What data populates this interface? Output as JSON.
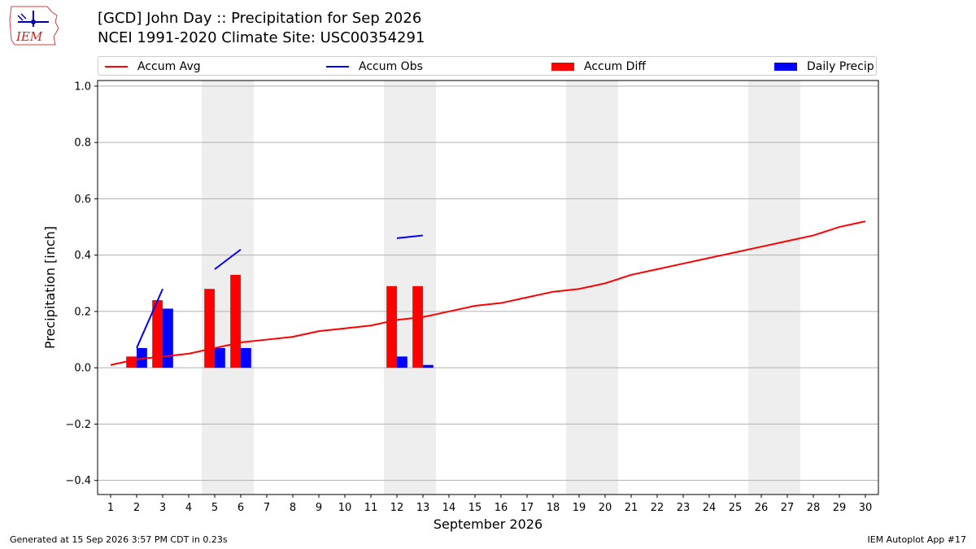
{
  "header": {
    "logo_text": "IEM",
    "title_line1": "[GCD] John Day :: Precipitation for Sep 2026",
    "title_line2": "NCEI 1991-2020 Climate Site: USC00354291"
  },
  "legend": {
    "items": [
      {
        "label": "Accum Avg",
        "kind": "line",
        "color": "#ff0000"
      },
      {
        "label": "Accum Obs",
        "kind": "line",
        "color": "#0000ff"
      },
      {
        "label": "Accum Diff",
        "kind": "box",
        "color": "#ff0000"
      },
      {
        "label": "Daily Precip",
        "kind": "box",
        "color": "#0000ff"
      }
    ],
    "placement": "top, above plot, full width"
  },
  "chart_data": {
    "type": "bar",
    "xlabel": "September 2026",
    "ylabel": "Precipitation [inch]",
    "xlim": [
      0.5,
      30.5
    ],
    "ylim": [
      -0.45,
      1.02
    ],
    "x_ticks": [
      1,
      2,
      3,
      4,
      5,
      6,
      7,
      8,
      9,
      10,
      11,
      12,
      13,
      14,
      15,
      16,
      17,
      18,
      19,
      20,
      21,
      22,
      23,
      24,
      25,
      26,
      27,
      28,
      29,
      30
    ],
    "y_ticks": [
      -0.4,
      -0.2,
      0.0,
      0.2,
      0.4,
      0.6,
      0.8,
      1.0
    ],
    "y_tick_labels": [
      "−0.4",
      "−0.2",
      "0.0",
      "0.2",
      "0.4",
      "0.6",
      "0.8",
      "1.0"
    ],
    "grid": "horizontal",
    "weekend_shading": [
      [
        4.5,
        6.5
      ],
      [
        11.5,
        13.5
      ],
      [
        18.5,
        20.5
      ],
      [
        25.5,
        27.5
      ]
    ],
    "shade_color": "#eeeeee",
    "series": [
      {
        "name": "Accum Avg",
        "kind": "line",
        "color": "#ff0000",
        "x": [
          1,
          2,
          3,
          4,
          5,
          6,
          7,
          8,
          9,
          10,
          11,
          12,
          13,
          14,
          15,
          16,
          17,
          18,
          19,
          20,
          21,
          22,
          23,
          24,
          25,
          26,
          27,
          28,
          29,
          30
        ],
        "y": [
          0.01,
          0.03,
          0.04,
          0.05,
          0.07,
          0.09,
          0.1,
          0.11,
          0.13,
          0.14,
          0.15,
          0.17,
          0.18,
          0.2,
          0.22,
          0.23,
          0.25,
          0.27,
          0.28,
          0.3,
          0.33,
          0.35,
          0.37,
          0.39,
          0.41,
          0.43,
          0.45,
          0.47,
          0.5,
          0.52
        ]
      },
      {
        "name": "Accum Obs",
        "kind": "line",
        "color": "#0000ff",
        "segments": [
          {
            "x": [
              2,
              3
            ],
            "y": [
              0.07,
              0.28
            ]
          },
          {
            "x": [
              5,
              6
            ],
            "y": [
              0.35,
              0.42
            ]
          },
          {
            "x": [
              12,
              13
            ],
            "y": [
              0.46,
              0.47
            ]
          }
        ]
      },
      {
        "name": "Accum Diff",
        "kind": "bar",
        "color": "#ff0000",
        "x": [
          2,
          3,
          5,
          6,
          12,
          13
        ],
        "y": [
          0.04,
          0.24,
          0.28,
          0.33,
          0.29,
          0.29
        ]
      },
      {
        "name": "Daily Precip",
        "kind": "bar",
        "color": "#0000ff",
        "x": [
          2,
          3,
          5,
          6,
          12,
          13
        ],
        "y": [
          0.07,
          0.21,
          0.07,
          0.07,
          0.04,
          0.01
        ]
      }
    ]
  },
  "footer": {
    "left": "Generated at 15 Sep 2026 3:57 PM CDT in 0.23s",
    "right": "IEM Autoplot App #17"
  }
}
